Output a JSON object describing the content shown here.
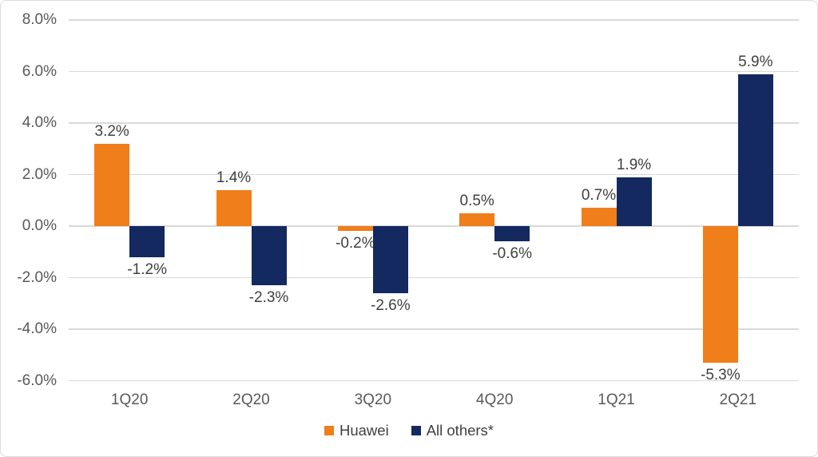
{
  "window": {
    "background_color": "#ffffff",
    "border_color": "#dcdcdc"
  },
  "chart_data": {
    "type": "bar",
    "title": "",
    "xlabel": "",
    "ylabel": "",
    "categories": [
      "1Q20",
      "2Q20",
      "3Q20",
      "4Q20",
      "1Q21",
      "2Q21"
    ],
    "series": [
      {
        "name": "Huawei",
        "color": "#F07E1A",
        "values": [
          3.2,
          1.4,
          -0.2,
          0.5,
          0.7,
          -5.3
        ],
        "data_labels": [
          "3.2%",
          "1.4%",
          "-0.2%",
          "0.5%",
          "0.7%",
          "-5.3%"
        ]
      },
      {
        "name": "All others*",
        "color": "#13295F",
        "values": [
          -1.2,
          -2.3,
          -2.6,
          -0.6,
          1.9,
          5.9
        ],
        "data_labels": [
          "-1.2%",
          "-2.3%",
          "-2.6%",
          "-0.6%",
          "1.9%",
          "5.9%"
        ]
      }
    ],
    "y_tick_values": [
      8,
      6,
      4,
      2,
      0,
      -2,
      -4,
      -6
    ],
    "y_tick_labels": [
      "8.0%",
      "6.0%",
      "4.0%",
      "2.0%",
      "0.0%",
      "-2.0%",
      "-4.0%",
      "-6.0%"
    ],
    "ylim": [
      -6,
      8
    ],
    "grid": true,
    "gridline_color": "#d9d9d9",
    "tick_text_color": "#595959",
    "data_label_color": "#404040",
    "legend_position": "bottom",
    "legend_entries": [
      "Huawei",
      "All others*"
    ]
  }
}
